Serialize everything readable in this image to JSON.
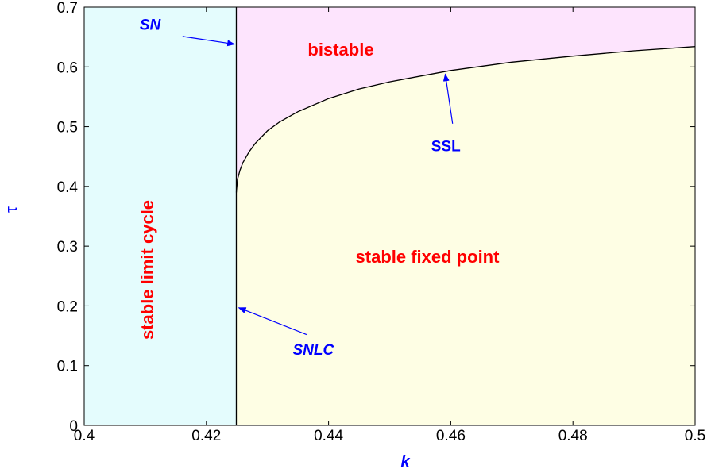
{
  "chart_data": {
    "type": "area",
    "title": "",
    "xlabel": "k",
    "ylabel": "τ",
    "xlim": [
      0.4,
      0.5
    ],
    "ylim": [
      0,
      0.7
    ],
    "grid": false,
    "x_ticks": [
      {
        "value": 0.4,
        "label": "0.4"
      },
      {
        "value": 0.42,
        "label": "0.42"
      },
      {
        "value": 0.44,
        "label": "0.44"
      },
      {
        "value": 0.46,
        "label": "0.46"
      },
      {
        "value": 0.48,
        "label": "0.48"
      },
      {
        "value": 0.5,
        "label": "0.5"
      }
    ],
    "y_ticks": [
      {
        "value": 0,
        "label": "0"
      },
      {
        "value": 0.1,
        "label": "0.1"
      },
      {
        "value": 0.2,
        "label": "0.2"
      },
      {
        "value": 0.3,
        "label": "0.3"
      },
      {
        "value": 0.4,
        "label": "0.4"
      },
      {
        "value": 0.5,
        "label": "0.5"
      },
      {
        "value": 0.6,
        "label": "0.6"
      },
      {
        "value": 0.7,
        "label": "0.7"
      }
    ],
    "boundary_k": 0.4249,
    "ssl_curve": {
      "x": [
        0.4249,
        0.4251,
        0.4255,
        0.426,
        0.427,
        0.428,
        0.43,
        0.432,
        0.435,
        0.44,
        0.445,
        0.45,
        0.46,
        0.47,
        0.48,
        0.49,
        0.5
      ],
      "y": [
        0.39,
        0.412,
        0.427,
        0.44,
        0.458,
        0.472,
        0.493,
        0.508,
        0.525,
        0.547,
        0.563,
        0.575,
        0.594,
        0.608,
        0.618,
        0.627,
        0.634
      ]
    },
    "regions": {
      "limit_cycle": {
        "label": "stable limit cycle",
        "color": "#e4fcfd"
      },
      "bistable": {
        "label": "bistable",
        "color": "#fde4fd"
      },
      "fixed_point": {
        "label": "stable fixed point",
        "color": "#fefee4"
      }
    },
    "annotations": [
      {
        "label": "SN",
        "italic": true,
        "text_xy": [
          0.4108,
          0.662
        ],
        "arrow_from": [
          0.4161,
          0.651
        ],
        "arrow_to": [
          0.4246,
          0.638
        ]
      },
      {
        "label": "SSL",
        "italic": false,
        "text_xy": [
          0.4592,
          0.459
        ],
        "arrow_from": [
          0.4603,
          0.505
        ],
        "arrow_to": [
          0.4591,
          0.588
        ]
      },
      {
        "label": "SNLC",
        "italic": true,
        "text_xy": [
          0.4375,
          0.118
        ],
        "arrow_from": [
          0.4364,
          0.152
        ],
        "arrow_to": [
          0.4253,
          0.197
        ]
      }
    ],
    "colors": {
      "region_text": "#ff0000",
      "annotation": "#0000ff",
      "boundary": "#000000"
    }
  }
}
